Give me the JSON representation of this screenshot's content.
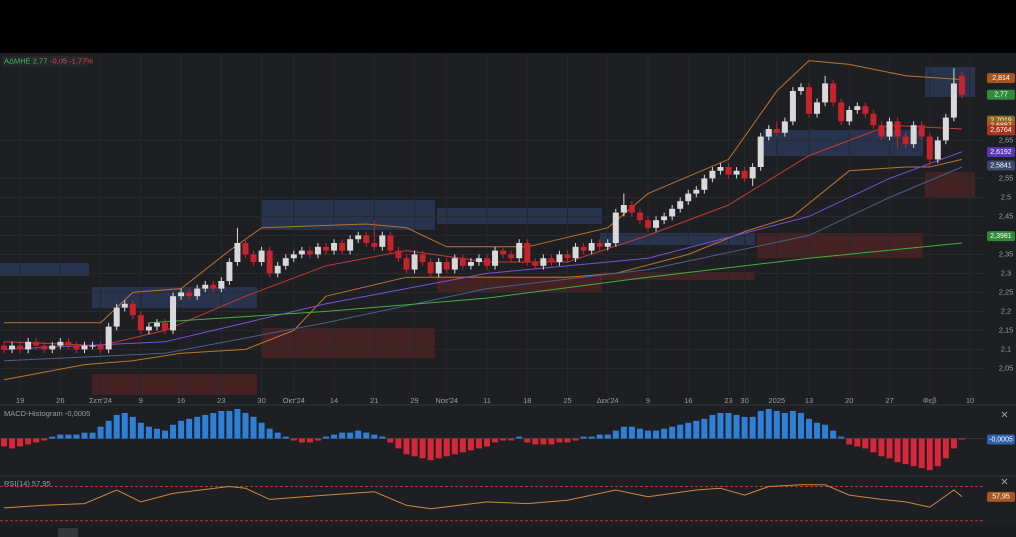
{
  "header": {
    "symbol": "ΑΔΜΗΕ 2,77",
    "change": "-0,05 -1,77%"
  },
  "chart_data": [
    {
      "type": "candlestick",
      "categories": [
        null,
        null,
        "19",
        null,
        null,
        null,
        null,
        "26",
        null,
        null,
        null,
        null,
        "Σεπ'24",
        null,
        null,
        null,
        null,
        "9",
        null,
        null,
        null,
        null,
        "16",
        null,
        null,
        null,
        null,
        "23",
        null,
        null,
        null,
        null,
        "30",
        null,
        null,
        null,
        "Οκτ'24",
        null,
        null,
        null,
        null,
        "14",
        null,
        null,
        null,
        null,
        "21",
        null,
        null,
        null,
        null,
        "29",
        null,
        null,
        null,
        "Νοε'24",
        null,
        null,
        null,
        null,
        "11",
        null,
        null,
        null,
        null,
        "18",
        null,
        null,
        null,
        null,
        "25",
        null,
        null,
        null,
        null,
        "Δεκ'24",
        null,
        null,
        null,
        null,
        "9",
        null,
        null,
        null,
        null,
        "16",
        null,
        null,
        null,
        null,
        "23",
        null,
        "30",
        null,
        null,
        null,
        "2025",
        null,
        null,
        null,
        "13",
        null,
        null,
        null,
        null,
        "20",
        null,
        null,
        null,
        null,
        "27",
        null,
        null,
        null,
        null,
        "Φεβ",
        null,
        null,
        null,
        null,
        "10"
      ],
      "open": [
        2.11,
        2.1,
        2.11,
        2.1,
        2.12,
        2.11,
        2.1,
        2.11,
        2.12,
        2.11,
        2.1,
        2.11,
        2.11,
        2.1,
        2.16,
        2.21,
        2.22,
        2.19,
        2.15,
        2.16,
        2.17,
        2.15,
        2.24,
        2.25,
        2.24,
        2.26,
        2.27,
        2.26,
        2.28,
        2.33,
        2.38,
        2.35,
        2.33,
        2.36,
        2.3,
        2.32,
        2.34,
        2.35,
        2.36,
        2.35,
        2.37,
        2.36,
        2.38,
        2.36,
        2.39,
        2.4,
        2.38,
        2.37,
        2.4,
        2.36,
        2.34,
        2.31,
        2.35,
        2.33,
        2.3,
        2.33,
        2.31,
        2.34,
        2.32,
        2.33,
        2.34,
        2.32,
        2.36,
        2.35,
        2.34,
        2.38,
        2.33,
        2.32,
        2.34,
        2.33,
        2.35,
        2.34,
        2.37,
        2.36,
        2.38,
        2.37,
        2.38,
        2.46,
        2.48,
        2.46,
        2.44,
        2.42,
        2.44,
        2.45,
        2.47,
        2.49,
        2.51,
        2.52,
        2.55,
        2.57,
        2.58,
        2.56,
        2.57,
        2.55,
        2.58,
        2.66,
        2.68,
        2.67,
        2.7,
        2.78,
        2.79,
        2.72,
        2.75,
        2.8,
        2.75,
        2.7,
        2.73,
        2.74,
        2.72,
        2.69,
        2.66,
        2.7,
        2.66,
        2.64,
        2.69,
        2.66,
        2.6,
        2.65,
        2.71,
        2.82,
        null
      ],
      "high": [
        2.12,
        2.12,
        2.12,
        2.13,
        2.13,
        2.12,
        2.12,
        2.13,
        2.13,
        2.12,
        2.12,
        2.12,
        2.12,
        2.17,
        2.22,
        2.23,
        2.23,
        2.2,
        2.17,
        2.18,
        2.18,
        2.25,
        2.26,
        2.26,
        2.27,
        2.28,
        2.28,
        2.29,
        2.34,
        2.42,
        2.39,
        2.36,
        2.37,
        2.37,
        2.33,
        2.35,
        2.36,
        2.37,
        2.37,
        2.38,
        2.38,
        2.39,
        2.39,
        2.4,
        2.41,
        2.41,
        2.44,
        2.41,
        2.41,
        2.37,
        2.35,
        2.36,
        2.36,
        2.34,
        2.34,
        2.34,
        2.35,
        2.35,
        2.34,
        2.35,
        2.35,
        2.37,
        2.37,
        2.36,
        2.39,
        2.39,
        2.34,
        2.35,
        2.35,
        2.36,
        2.36,
        2.38,
        2.38,
        2.39,
        2.39,
        2.39,
        2.47,
        2.51,
        2.49,
        2.47,
        2.45,
        2.45,
        2.46,
        2.48,
        2.5,
        2.52,
        2.53,
        2.56,
        2.58,
        2.59,
        2.59,
        2.58,
        2.58,
        2.59,
        2.67,
        2.69,
        2.7,
        2.71,
        2.79,
        2.8,
        2.8,
        2.76,
        2.82,
        2.81,
        2.76,
        2.74,
        2.75,
        2.75,
        2.73,
        2.7,
        2.71,
        2.71,
        2.67,
        2.7,
        2.7,
        2.67,
        2.66,
        2.72,
        2.84,
        2.83,
        null
      ],
      "low": [
        2.09,
        2.09,
        2.09,
        2.09,
        2.1,
        2.09,
        2.09,
        2.1,
        2.1,
        2.09,
        2.09,
        2.1,
        2.09,
        2.09,
        2.15,
        2.2,
        2.18,
        2.14,
        2.14,
        2.15,
        2.14,
        2.14,
        2.23,
        2.23,
        2.23,
        2.25,
        2.25,
        2.25,
        2.27,
        2.32,
        2.34,
        2.32,
        2.32,
        2.29,
        2.29,
        2.31,
        2.33,
        2.34,
        2.34,
        2.34,
        2.35,
        2.35,
        2.35,
        2.35,
        2.38,
        2.37,
        2.36,
        2.36,
        2.35,
        2.33,
        2.3,
        2.3,
        2.32,
        2.29,
        2.29,
        2.3,
        2.3,
        2.31,
        2.31,
        2.32,
        2.31,
        2.31,
        2.34,
        2.33,
        2.33,
        2.32,
        2.31,
        2.31,
        2.32,
        2.32,
        2.33,
        2.33,
        2.35,
        2.35,
        2.36,
        2.36,
        2.37,
        2.45,
        2.45,
        2.43,
        2.41,
        2.41,
        2.43,
        2.44,
        2.46,
        2.48,
        2.5,
        2.51,
        2.54,
        2.56,
        2.55,
        2.55,
        2.54,
        2.53,
        2.57,
        2.65,
        2.66,
        2.66,
        2.69,
        2.77,
        2.71,
        2.71,
        2.74,
        2.74,
        2.69,
        2.69,
        2.72,
        2.71,
        2.68,
        2.65,
        2.65,
        2.63,
        2.63,
        2.63,
        2.65,
        2.58,
        2.59,
        2.64,
        2.7,
        2.76,
        null
      ],
      "close": [
        2.1,
        2.11,
        2.1,
        2.12,
        2.11,
        2.1,
        2.11,
        2.12,
        2.11,
        2.1,
        2.11,
        2.11,
        2.1,
        2.16,
        2.21,
        2.22,
        2.19,
        2.15,
        2.16,
        2.17,
        2.15,
        2.24,
        2.25,
        2.24,
        2.26,
        2.27,
        2.26,
        2.28,
        2.33,
        2.38,
        2.35,
        2.33,
        2.36,
        2.3,
        2.32,
        2.34,
        2.35,
        2.36,
        2.35,
        2.37,
        2.36,
        2.38,
        2.36,
        2.39,
        2.4,
        2.38,
        2.37,
        2.4,
        2.36,
        2.34,
        2.31,
        2.35,
        2.33,
        2.3,
        2.33,
        2.31,
        2.34,
        2.32,
        2.33,
        2.34,
        2.32,
        2.36,
        2.35,
        2.34,
        2.38,
        2.33,
        2.32,
        2.34,
        2.33,
        2.35,
        2.34,
        2.37,
        2.36,
        2.38,
        2.37,
        2.38,
        2.46,
        2.48,
        2.46,
        2.44,
        2.42,
        2.44,
        2.45,
        2.47,
        2.49,
        2.51,
        2.52,
        2.55,
        2.57,
        2.58,
        2.56,
        2.57,
        2.55,
        2.58,
        2.66,
        2.68,
        2.67,
        2.7,
        2.78,
        2.79,
        2.72,
        2.75,
        2.8,
        2.75,
        2.7,
        2.73,
        2.74,
        2.72,
        2.69,
        2.66,
        2.7,
        2.66,
        2.64,
        2.69,
        2.66,
        2.6,
        2.65,
        2.71,
        2.8,
        2.77,
        null
      ],
      "up_color": "#d9d9d9",
      "down_color": "#c8222c",
      "ylim": [
        1.98,
        2.88
      ],
      "yticks": [
        {
          "value": 2.05,
          "label": "2,05"
        },
        {
          "value": 2.1,
          "label": "2,1"
        },
        {
          "value": 2.15,
          "label": "2,15"
        },
        {
          "value": 2.2,
          "label": "2,2"
        },
        {
          "value": 2.25,
          "label": "2,25"
        },
        {
          "value": 2.3,
          "label": "2,3"
        },
        {
          "value": 2.35,
          "label": "2,35"
        },
        {
          "value": 2.4,
          "label": "2,4"
        },
        {
          "value": 2.45,
          "label": "2,45"
        },
        {
          "value": 2.5,
          "label": "2,5"
        },
        {
          "value": 2.55,
          "label": "2,55"
        },
        {
          "value": 2.65,
          "label": "2,65"
        }
      ],
      "grid": true,
      "lines": [
        {
          "color": "#b8742c",
          "x": [
            0,
            12,
            16,
            22,
            28,
            32,
            45,
            50,
            55,
            65,
            75,
            80,
            90,
            96,
            100,
            105,
            112,
            119
          ],
          "values": [
            2.17,
            2.17,
            2.25,
            2.26,
            2.36,
            2.42,
            2.43,
            2.42,
            2.37,
            2.37,
            2.42,
            2.51,
            2.6,
            2.78,
            2.86,
            2.85,
            2.82,
            2.81
          ]
        },
        {
          "color": "#b8742c",
          "x": [
            0,
            10,
            16,
            22,
            30,
            36,
            40,
            50,
            60,
            70,
            76,
            85,
            92,
            98,
            105,
            112,
            115,
            119
          ],
          "values": [
            2.02,
            2.06,
            2.07,
            2.09,
            2.1,
            2.15,
            2.24,
            2.29,
            2.29,
            2.29,
            2.3,
            2.35,
            2.41,
            2.45,
            2.57,
            2.58,
            2.58,
            2.6
          ]
        },
        {
          "color": "#c43a3a",
          "x": [
            0,
            12,
            20,
            30,
            40,
            50,
            60,
            70,
            80,
            90,
            100,
            110,
            119
          ],
          "values": [
            2.12,
            2.11,
            2.15,
            2.24,
            2.32,
            2.36,
            2.33,
            2.33,
            2.4,
            2.48,
            2.61,
            2.69,
            2.68
          ]
        },
        {
          "color": "#7a4fd6",
          "x": [
            0,
            20,
            40,
            60,
            80,
            100,
            110,
            119
          ],
          "values": [
            2.1,
            2.12,
            2.22,
            2.3,
            2.34,
            2.45,
            2.55,
            2.62
          ]
        },
        {
          "color": "#4a5f8a",
          "x": [
            0,
            20,
            40,
            60,
            80,
            100,
            110,
            119
          ],
          "values": [
            2.07,
            2.09,
            2.17,
            2.26,
            2.31,
            2.4,
            2.5,
            2.58
          ]
        },
        {
          "color": "#3fae3a",
          "x": [
            18,
            40,
            60,
            80,
            100,
            119
          ],
          "values": [
            2.17,
            2.2,
            2.235,
            2.29,
            2.34,
            2.38
          ]
        }
      ],
      "price_labels": [
        {
          "value": 2.814,
          "label": "2,814",
          "color": "#a8561f"
        },
        {
          "value": 2.77,
          "label": "2,77",
          "color": "#2e8b3a"
        },
        {
          "value": 2.7019,
          "label": "2,7019",
          "color": "#8a6a1f"
        },
        {
          "value": 2.6887,
          "label": "2,6887",
          "color": "#a8561f"
        },
        {
          "value": 2.6764,
          "label": "2,6764",
          "color": "#a8331f"
        },
        {
          "value": 2.6192,
          "label": "2,6192",
          "color": "#5b35b8"
        },
        {
          "value": 2.5841,
          "label": "2,5841",
          "color": "#3b4a6b"
        },
        {
          "value": 2.3981,
          "label": "2,3981",
          "color": "#2e8b3a"
        }
      ]
    },
    {
      "type": "bar",
      "title": "MACD-Histogram -0,0005",
      "values": [
        -0.004,
        -0.005,
        -0.004,
        -0.003,
        -0.002,
        -0.001,
        0.001,
        0.002,
        0.002,
        0.002,
        0.003,
        0.003,
        0.006,
        0.009,
        0.012,
        0.013,
        0.011,
        0.008,
        0.006,
        0.005,
        0.004,
        0.007,
        0.009,
        0.01,
        0.011,
        0.012,
        0.013,
        0.014,
        0.014,
        0.015,
        0.013,
        0.011,
        0.008,
        0.005,
        0.003,
        0.001,
        -0.001,
        -0.002,
        -0.002,
        -0.001,
        0.001,
        0.002,
        0.003,
        0.003,
        0.004,
        0.003,
        0.002,
        0.001,
        -0.002,
        -0.005,
        -0.008,
        -0.009,
        -0.01,
        -0.011,
        -0.01,
        -0.009,
        -0.008,
        -0.007,
        -0.006,
        -0.005,
        -0.004,
        -0.002,
        -0.001,
        -0.001,
        0.001,
        -0.002,
        -0.003,
        -0.003,
        -0.003,
        -0.002,
        -0.002,
        -0.001,
        0.001,
        0.001,
        0.002,
        0.002,
        0.004,
        0.006,
        0.006,
        0.005,
        0.004,
        0.004,
        0.005,
        0.006,
        0.007,
        0.008,
        0.009,
        0.01,
        0.012,
        0.013,
        0.013,
        0.012,
        0.011,
        0.011,
        0.014,
        0.015,
        0.014,
        0.013,
        0.014,
        0.013,
        0.01,
        0.008,
        0.007,
        0.004,
        0.001,
        -0.003,
        -0.004,
        -0.005,
        -0.007,
        -0.009,
        -0.01,
        -0.012,
        -0.013,
        -0.014,
        -0.015,
        -0.016,
        -0.014,
        -0.01,
        -0.005,
        -0.0005,
        null
      ],
      "positive_color": "#2f7fd6",
      "negative_color": "#d6283a",
      "ylim": [
        -0.0185,
        0.0155
      ],
      "last_label": {
        "value": -0.0005,
        "label": "-0,0005",
        "color": "#2f5fb0"
      }
    },
    {
      "type": "line",
      "title": "RSI(14) 57,95",
      "color": "#c88a3a",
      "x": [
        0,
        5,
        10,
        14,
        17,
        21,
        28,
        30,
        33,
        40,
        46,
        50,
        53,
        60,
        65,
        70,
        76,
        80,
        86,
        89,
        92,
        95,
        99,
        102,
        105,
        109,
        112,
        115,
        118,
        119
      ],
      "values": [
        45,
        48,
        50,
        66,
        52,
        62,
        70,
        68,
        55,
        60,
        64,
        48,
        44,
        52,
        50,
        54,
        66,
        58,
        66,
        68,
        60,
        70,
        72,
        72,
        60,
        55,
        52,
        46,
        66,
        58
      ],
      "ylim": [
        25,
        80
      ],
      "levels": [
        70,
        30
      ],
      "level_color": "#b03a3a",
      "last_label": {
        "value": 57.95,
        "label": "57,95",
        "color": "#a8561f"
      }
    }
  ]
}
